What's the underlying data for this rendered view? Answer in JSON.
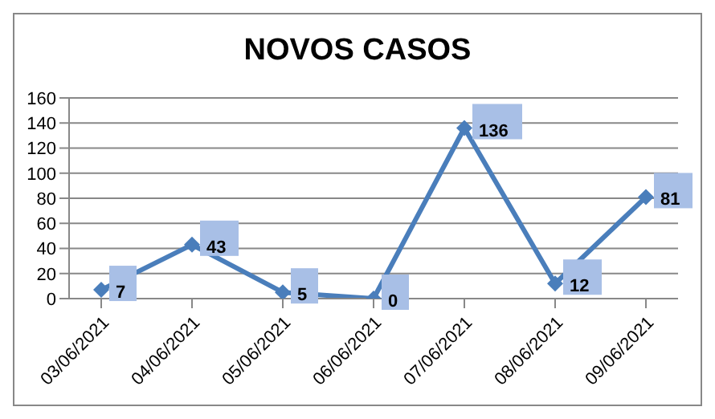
{
  "chart_data": {
    "type": "line",
    "title": "NOVOS CASOS",
    "categories": [
      "03/06/2021",
      "04/06/2021",
      "05/06/2021",
      "06/06/2021",
      "07/06/2021",
      "08/06/2021",
      "09/06/2021"
    ],
    "series": [
      {
        "color": "#4a7ebb",
        "values": [
          7,
          43,
          5,
          0,
          136,
          12,
          81
        ]
      }
    ],
    "ylim": [
      0,
      160
    ],
    "yticks": [
      0,
      20,
      40,
      60,
      80,
      100,
      120,
      140,
      160
    ],
    "grid": "y",
    "marker": "diamond",
    "line_style": "solid",
    "data_labels": true,
    "legend": false
  }
}
